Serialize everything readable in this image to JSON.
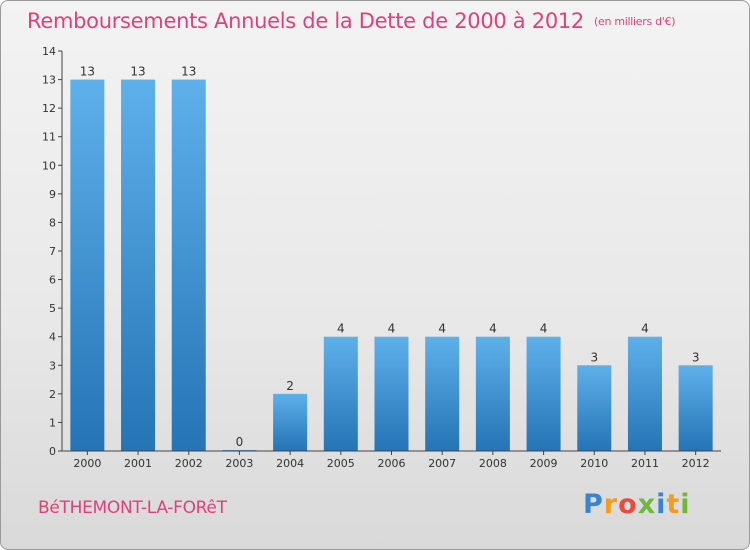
{
  "title": "Remboursements Annuels de la Dette de 2000 à 2012",
  "unit": "(en milliers d'€)",
  "commune": "BéTHEMONT-LA-FORêT",
  "logo": "Proxiti",
  "colors": {
    "bar_light": "#5eb0ea",
    "bar_dark": "#2574b6",
    "title": "#e0407a",
    "axis": "#444444"
  },
  "chart_data": {
    "type": "bar",
    "categories": [
      "2000",
      "2001",
      "2002",
      "2003",
      "2004",
      "2005",
      "2006",
      "2007",
      "2008",
      "2009",
      "2010",
      "2011",
      "2012"
    ],
    "values": [
      13,
      13,
      13,
      0,
      2,
      4,
      4,
      4,
      4,
      4,
      3,
      4,
      3
    ],
    "data_labels": [
      "13",
      "13",
      "13",
      "0",
      "2",
      "4",
      "4",
      "4",
      "4",
      "4",
      "3",
      "4",
      "3"
    ],
    "ylim": [
      0,
      14
    ],
    "yticks": [
      0,
      1,
      2,
      3,
      4,
      5,
      6,
      7,
      8,
      9,
      10,
      11,
      12,
      13,
      14
    ],
    "ytick_labels": [
      "0",
      "1",
      "2",
      "3",
      "4",
      "5",
      "6",
      "7",
      "8",
      "9",
      "10",
      "11",
      "12",
      "13",
      "14"
    ],
    "grid": false,
    "xlabel": "",
    "ylabel": ""
  }
}
